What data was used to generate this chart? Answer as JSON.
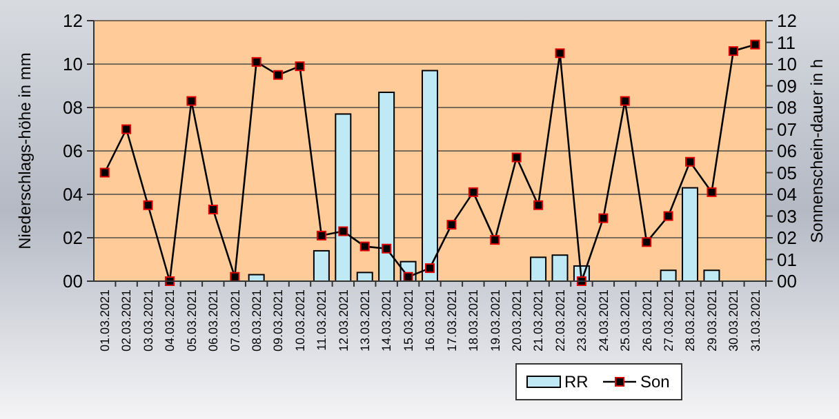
{
  "chart_data": {
    "type": "bar",
    "ylabel": "Niederschlags-höhe in mm",
    "y2label": "Sonnenschein-dauer in h",
    "categories": [
      "01.03.2021",
      "02.03.2021",
      "03.03.2021",
      "04.03.2021",
      "05.03.2021",
      "06.03.2021",
      "07.03.2021",
      "08.03.2021",
      "09.03.2021",
      "10.03.2021",
      "11.03.2021",
      "12.03.2021",
      "13.03.2021",
      "14.03.2021",
      "15.03.2021",
      "16.03.2021",
      "17.03.2021",
      "18.03.2021",
      "19.03.2021",
      "20.03.2021",
      "21.03.2021",
      "22.03.2021",
      "23.03.2021",
      "24.03.2021",
      "25.03.2021",
      "26.03.2021",
      "27.03.2021",
      "28.03.2021",
      "29.03.2021",
      "30.03.2021",
      "31.03.2021"
    ],
    "series": [
      {
        "name": "RR",
        "color": "#bfeaf5",
        "values": [
          null,
          null,
          null,
          null,
          null,
          null,
          null,
          0.3,
          null,
          null,
          1.4,
          7.7,
          0.4,
          8.7,
          0.9,
          9.7,
          null,
          null,
          null,
          null,
          1.1,
          1.2,
          0.7,
          null,
          null,
          null,
          0.5,
          4.3,
          0.5,
          null,
          null
        ]
      },
      {
        "name": "Son",
        "type": "line",
        "axis": "y2",
        "color": "#000000",
        "values": [
          5.0,
          7.0,
          3.5,
          0.0,
          8.3,
          3.3,
          0.2,
          10.1,
          9.5,
          9.9,
          2.1,
          2.3,
          1.6,
          1.5,
          0.2,
          0.6,
          2.6,
          4.1,
          1.9,
          5.7,
          3.5,
          10.5,
          0.0,
          2.9,
          8.3,
          1.8,
          3.0,
          5.5,
          4.1,
          10.6,
          10.9
        ]
      }
    ],
    "ylim": [
      0,
      12
    ],
    "yticks": [
      {
        "value": 0,
        "label": "00"
      },
      {
        "value": 2,
        "label": "02"
      },
      {
        "value": 4,
        "label": "04"
      },
      {
        "value": 6,
        "label": "06"
      },
      {
        "value": 8,
        "label": "08"
      },
      10,
      12
    ],
    "y2lim": [
      0,
      12
    ],
    "y2ticks": [
      {
        "value": 0,
        "label": "00"
      },
      {
        "value": 1,
        "label": "01"
      },
      {
        "value": 2,
        "label": "02"
      },
      {
        "value": 3,
        "label": "03"
      },
      {
        "value": 4,
        "label": "04"
      },
      {
        "value": 5,
        "label": "05"
      },
      {
        "value": 6,
        "label": "06"
      },
      {
        "value": 7,
        "label": "07"
      },
      {
        "value": 8,
        "label": "08"
      },
      {
        "value": 9,
        "label": "09"
      },
      10,
      11,
      12
    ],
    "grid": "y",
    "legend": "bottom",
    "marker": "square",
    "line_style": "solid"
  }
}
